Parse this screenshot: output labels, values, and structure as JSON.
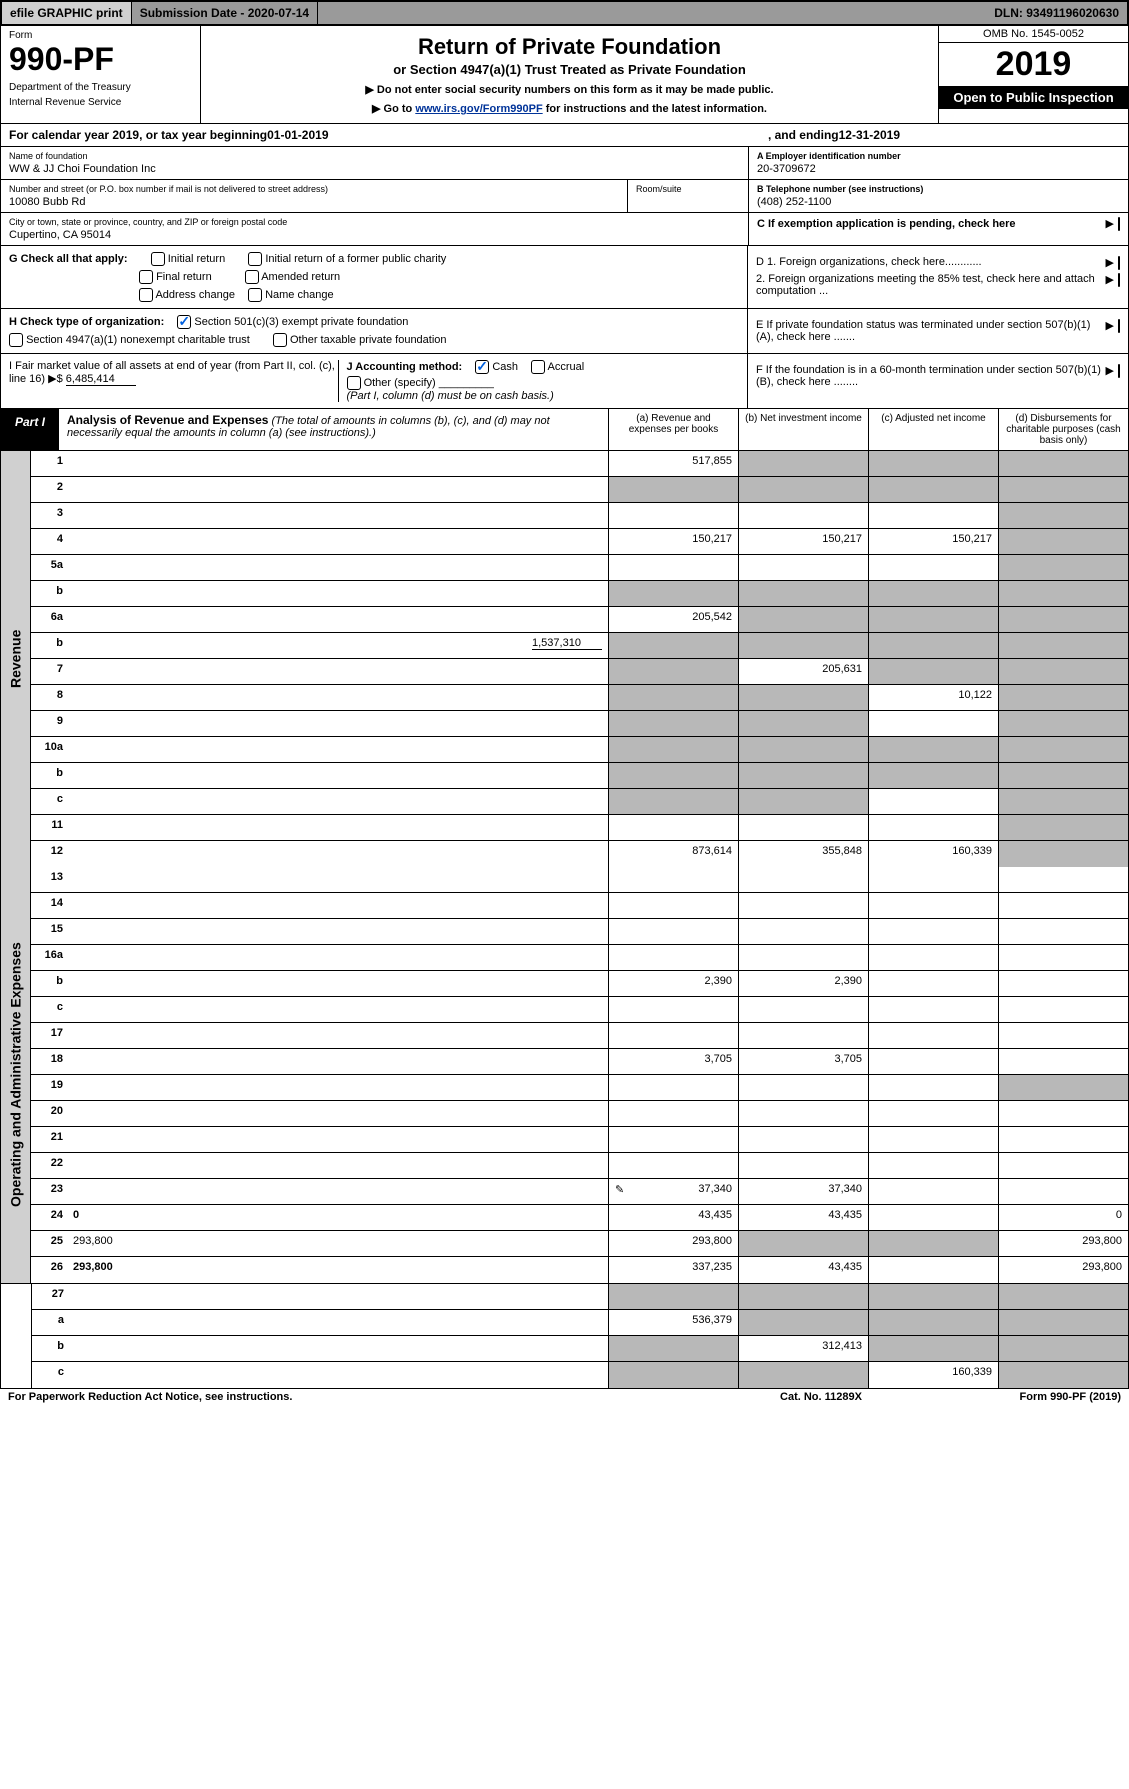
{
  "topbar": {
    "efile": "efile GRAPHIC print",
    "submission_label": "Submission Date - 2020-07-14",
    "dln": "DLN: 93491196020630"
  },
  "header": {
    "form_label": "Form",
    "form_number": "990-PF",
    "dept1": "Department of the Treasury",
    "dept2": "Internal Revenue Service",
    "title": "Return of Private Foundation",
    "subtitle": "or Section 4947(a)(1) Trust Treated as Private Foundation",
    "instr1": "▶ Do not enter social security numbers on this form as it may be made public.",
    "instr2_pre": "▶ Go to ",
    "instr2_link": "www.irs.gov/Form990PF",
    "instr2_post": " for instructions and the latest information.",
    "omb": "OMB No. 1545-0052",
    "year": "2019",
    "open_public": "Open to Public Inspection"
  },
  "calyear": {
    "pre": "For calendar year 2019, or tax year beginning ",
    "begin": "01-01-2019",
    "mid": ", and ending ",
    "end": "12-31-2019"
  },
  "entity": {
    "name_label": "Name of foundation",
    "name": "WW & JJ Choi Foundation Inc",
    "addr_label": "Number and street (or P.O. box number if mail is not delivered to street address)",
    "addr": "10080 Bubb Rd",
    "room_label": "Room/suite",
    "room": "",
    "city_label": "City or town, state or province, country, and ZIP or foreign postal code",
    "city": "Cupertino, CA  95014",
    "ein_label": "A Employer identification number",
    "ein": "20-3709672",
    "phone_label": "B Telephone number (see instructions)",
    "phone": "(408) 252-1100",
    "c_label": "C If exemption application is pending, check here"
  },
  "g_section": {
    "label": "G Check all that apply:",
    "initial_return": "Initial return",
    "initial_former": "Initial return of a former public charity",
    "final_return": "Final return",
    "amended": "Amended return",
    "address_change": "Address change",
    "name_change": "Name change"
  },
  "h_section": {
    "label": "H Check type of organization:",
    "opt1": "Section 501(c)(3) exempt private foundation",
    "opt2": "Section 4947(a)(1) nonexempt charitable trust",
    "opt3": "Other taxable private foundation"
  },
  "i_section": {
    "label": "I Fair market value of all assets at end of year (from Part II, col. (c), line 16) ▶$ ",
    "value": "6,485,414"
  },
  "j_section": {
    "label": "J Accounting method:",
    "cash": "Cash",
    "accrual": "Accrual",
    "other": "Other (specify)",
    "note": "(Part I, column (d) must be on cash basis.)"
  },
  "d_section": {
    "d1": "D 1. Foreign organizations, check here............",
    "d2": "2. Foreign organizations meeting the 85% test, check here and attach computation ...",
    "e": "E  If private foundation status was terminated under section 507(b)(1)(A), check here .......",
    "f": "F  If the foundation is in a 60-month termination under section 507(b)(1)(B), check here ........"
  },
  "part1": {
    "label": "Part I",
    "title": "Analysis of Revenue and Expenses",
    "title_note": " (The total of amounts in columns (b), (c), and (d) may not necessarily equal the amounts in column (a) (see instructions).)",
    "col_a": "(a)   Revenue and expenses per books",
    "col_b": "(b)  Net investment income",
    "col_c": "(c)  Adjusted net income",
    "col_d": "(d)  Disbursements for charitable purposes (cash basis only)"
  },
  "side": {
    "revenue": "Revenue",
    "expenses": "Operating and Administrative Expenses"
  },
  "rows": {
    "1": {
      "n": "1",
      "d": "",
      "a": "517,855",
      "b": "",
      "c": "",
      "gb": true,
      "gc": true,
      "gd": true
    },
    "2": {
      "n": "2",
      "d": "",
      "dots": true,
      "a": "",
      "b": "",
      "c": "",
      "ga": true,
      "gb": true,
      "gc": true,
      "gd": true
    },
    "3": {
      "n": "3",
      "d": "",
      "a": "",
      "b": "",
      "c": "",
      "gd": true
    },
    "4": {
      "n": "4",
      "d": "",
      "a": "150,217",
      "b": "150,217",
      "c": "150,217",
      "gd": true
    },
    "5a": {
      "n": "5a",
      "d": "",
      "a": "",
      "b": "",
      "c": "",
      "gd": true
    },
    "5b": {
      "n": "b",
      "d": "",
      "a": "",
      "b": "",
      "c": "",
      "ga": true,
      "gb": true,
      "gc": true,
      "gd": true
    },
    "6a": {
      "n": "6a",
      "d": "",
      "a": "205,542",
      "b": "",
      "c": "",
      "gb": true,
      "gc": true,
      "gd": true
    },
    "6b": {
      "n": "b",
      "d": "",
      "inline": "1,537,310",
      "a": "",
      "b": "",
      "c": "",
      "ga": true,
      "gb": true,
      "gc": true,
      "gd": true
    },
    "7": {
      "n": "7",
      "d": "",
      "a": "",
      "b": "205,631",
      "c": "",
      "ga": true,
      "gc": true,
      "gd": true
    },
    "8": {
      "n": "8",
      "d": "",
      "a": "",
      "b": "",
      "c": "10,122",
      "ga": true,
      "gb": true,
      "gd": true
    },
    "9": {
      "n": "9",
      "d": "",
      "a": "",
      "b": "",
      "c": "",
      "ga": true,
      "gb": true,
      "gd": true
    },
    "10a": {
      "n": "10a",
      "d": "",
      "a": "",
      "b": "",
      "c": "",
      "ga": true,
      "gb": true,
      "gc": true,
      "gd": true
    },
    "10b": {
      "n": "b",
      "d": "",
      "a": "",
      "b": "",
      "c": "",
      "ga": true,
      "gb": true,
      "gc": true,
      "gd": true
    },
    "10c": {
      "n": "c",
      "d": "",
      "a": "",
      "b": "",
      "c": "",
      "ga": true,
      "gb": true,
      "gd": true
    },
    "11": {
      "n": "11",
      "d": "",
      "a": "",
      "b": "",
      "c": "",
      "gd": true
    },
    "12": {
      "n": "12",
      "d": "",
      "bold": true,
      "a": "873,614",
      "b": "355,848",
      "c": "160,339",
      "gd": true
    },
    "13": {
      "n": "13",
      "d": "",
      "a": "",
      "b": "",
      "c": ""
    },
    "14": {
      "n": "14",
      "d": "",
      "a": "",
      "b": "",
      "c": ""
    },
    "15": {
      "n": "15",
      "d": "",
      "a": "",
      "b": "",
      "c": ""
    },
    "16a": {
      "n": "16a",
      "d": "",
      "a": "",
      "b": "",
      "c": ""
    },
    "16b": {
      "n": "b",
      "d": "",
      "a": "2,390",
      "b": "2,390",
      "c": ""
    },
    "16c": {
      "n": "c",
      "d": "",
      "a": "",
      "b": "",
      "c": ""
    },
    "17": {
      "n": "17",
      "d": "",
      "a": "",
      "b": "",
      "c": ""
    },
    "18": {
      "n": "18",
      "d": "",
      "a": "3,705",
      "b": "3,705",
      "c": ""
    },
    "19": {
      "n": "19",
      "d": "",
      "a": "",
      "b": "",
      "c": "",
      "gd": true
    },
    "20": {
      "n": "20",
      "d": "",
      "a": "",
      "b": "",
      "c": ""
    },
    "21": {
      "n": "21",
      "d": "",
      "a": "",
      "b": "",
      "c": ""
    },
    "22": {
      "n": "22",
      "d": "",
      "a": "",
      "b": "",
      "c": ""
    },
    "23": {
      "n": "23",
      "d": "",
      "pencil": true,
      "a": "37,340",
      "b": "37,340",
      "c": ""
    },
    "24": {
      "n": "24",
      "d": "0",
      "bold": true,
      "a": "43,435",
      "b": "43,435",
      "c": ""
    },
    "25": {
      "n": "25",
      "d": "293,800",
      "a": "293,800",
      "b": "",
      "c": "",
      "gb": true,
      "gc": true
    },
    "26": {
      "n": "26",
      "d": "293,800",
      "bold": true,
      "a": "337,235",
      "b": "43,435",
      "c": ""
    },
    "27": {
      "n": "27",
      "d": "",
      "a": "",
      "b": "",
      "c": "",
      "ga": true,
      "gb": true,
      "gc": true,
      "gd": true
    },
    "27a": {
      "n": "a",
      "d": "",
      "bold": true,
      "a": "536,379",
      "b": "",
      "c": "",
      "gb": true,
      "gc": true,
      "gd": true
    },
    "27b": {
      "n": "b",
      "d": "",
      "bold": true,
      "a": "",
      "b": "312,413",
      "c": "",
      "ga": true,
      "gc": true,
      "gd": true
    },
    "27c": {
      "n": "c",
      "d": "",
      "bold": true,
      "a": "",
      "b": "",
      "c": "160,339",
      "ga": true,
      "gb": true,
      "gd": true
    }
  },
  "footer": {
    "left": "For Paperwork Reduction Act Notice, see instructions.",
    "center": "Cat. No. 11289X",
    "right": "Form 990-PF (2019)"
  }
}
